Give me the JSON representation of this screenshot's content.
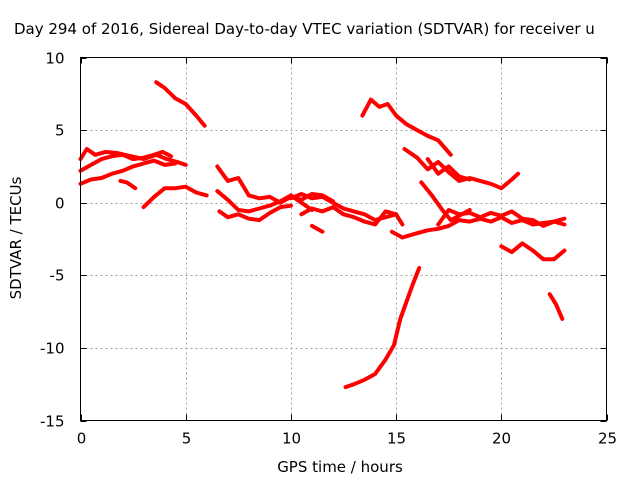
{
  "chart_data": {
    "type": "scatter",
    "title": "Day 294 of 2016, Sidereal Day-to-day VTEC variation (SDTVAR) for receiver u",
    "xlabel": "GPS time / hours",
    "ylabel": "SDTVAR / TECUs",
    "xlim": [
      0,
      25
    ],
    "ylim": [
      -15,
      10
    ],
    "xticks": [
      0,
      5,
      10,
      15,
      20,
      25
    ],
    "yticks": [
      -15,
      -10,
      -5,
      0,
      5,
      10
    ],
    "xtick_labels": [
      "0",
      "5",
      "10",
      "15",
      "20",
      "25"
    ],
    "ytick_labels": [
      "-15",
      "-10",
      "-5",
      "0",
      "5",
      "10"
    ],
    "grid": true,
    "marker_color": "#ff0000",
    "series": [
      {
        "x": [
          3.6,
          4.0,
          4.5,
          5.0,
          5.5,
          5.9
        ],
        "y": [
          8.3,
          7.9,
          7.2,
          6.8,
          6.0,
          5.3
        ]
      },
      {
        "x": [
          0.0,
          0.3,
          0.7,
          1.2,
          1.8,
          2.4,
          3.0,
          3.6,
          4.1,
          4.6,
          5.0
        ],
        "y": [
          3.0,
          3.7,
          3.3,
          3.5,
          3.4,
          3.2,
          3.0,
          3.3,
          3.0,
          2.8,
          2.6
        ]
      },
      {
        "x": [
          0.0,
          0.5,
          1.0,
          1.5,
          2.0,
          2.5,
          3.0,
          3.5,
          3.9,
          4.3
        ],
        "y": [
          2.2,
          2.6,
          3.0,
          3.2,
          3.3,
          3.0,
          3.1,
          3.3,
          3.5,
          3.2
        ]
      },
      {
        "x": [
          0.0,
          0.5,
          1.0,
          1.5,
          2.0,
          2.5,
          3.0,
          3.5,
          4.0,
          4.5
        ],
        "y": [
          1.3,
          1.6,
          1.7,
          2.0,
          2.2,
          2.5,
          2.7,
          2.9,
          2.6,
          2.7
        ]
      },
      {
        "x": [
          1.9,
          2.2,
          2.6
        ],
        "y": [
          1.5,
          1.4,
          1.0
        ]
      },
      {
        "x": [
          3.0,
          3.5,
          4.0,
          4.5,
          5.0,
          5.5,
          6.0
        ],
        "y": [
          -0.3,
          0.4,
          1.0,
          1.0,
          1.1,
          0.7,
          0.5
        ]
      },
      {
        "x": [
          6.5,
          7.0,
          7.5,
          8.0,
          8.5,
          9.0,
          9.5,
          10.0,
          10.5,
          11.0,
          11.5,
          12.0
        ],
        "y": [
          2.5,
          1.5,
          1.7,
          0.5,
          0.3,
          0.4,
          0.0,
          0.4,
          0.2,
          0.6,
          0.5,
          0.1
        ]
      },
      {
        "x": [
          6.5,
          7.0,
          7.5,
          8.0,
          8.5,
          9.0,
          9.5,
          10.0,
          10.5,
          11.0
        ],
        "y": [
          0.8,
          0.2,
          -0.5,
          -0.6,
          -0.4,
          -0.2,
          0.1,
          0.5,
          0.0,
          -0.5
        ]
      },
      {
        "x": [
          6.6,
          7.0,
          7.5,
          8.0,
          8.5,
          9.0,
          9.5,
          10.0
        ],
        "y": [
          -0.6,
          -1.0,
          -0.8,
          -1.1,
          -1.2,
          -0.7,
          -0.3,
          -0.2
        ]
      },
      {
        "x": [
          10.0,
          10.5,
          11.0,
          11.5,
          12.0,
          12.5,
          13.0,
          13.5,
          14.0,
          14.5,
          15.0,
          15.3
        ],
        "y": [
          0.3,
          0.6,
          0.3,
          0.4,
          0.0,
          -0.4,
          -0.6,
          -0.8,
          -1.2,
          -1.0,
          -0.8,
          -1.5
        ]
      },
      {
        "x": [
          10.5,
          11.0,
          11.5,
          12.0,
          12.5,
          13.0,
          13.5,
          14.0,
          14.5,
          15.0
        ],
        "y": [
          -0.8,
          -0.4,
          -0.6,
          -0.3,
          -0.8,
          -1.0,
          -1.3,
          -1.5,
          -0.6,
          -0.8
        ]
      },
      {
        "x": [
          11.0,
          11.5
        ],
        "y": [
          -1.6,
          -2.0
        ]
      },
      {
        "x": [
          14.8,
          15.3,
          16.0,
          16.5,
          17.0,
          17.5,
          18.0,
          18.5,
          19.0,
          19.5,
          20.0,
          20.5,
          21.0,
          21.5,
          22.0,
          22.5,
          23.0
        ],
        "y": [
          -2.0,
          -2.4,
          -2.1,
          -1.9,
          -1.8,
          -1.6,
          -1.2,
          -1.3,
          -1.1,
          -1.3,
          -1.0,
          -1.4,
          -1.2,
          -1.5,
          -1.4,
          -1.3,
          -1.1
        ]
      },
      {
        "x": [
          17.0,
          17.5,
          18.0,
          18.5,
          19.0,
          19.5,
          20.0,
          20.5,
          21.0,
          21.5,
          22.0,
          22.5,
          23.0
        ],
        "y": [
          -1.5,
          -0.5,
          -0.8,
          -0.7,
          -1.0,
          -0.7,
          -0.9,
          -0.6,
          -1.1,
          -1.2,
          -1.6,
          -1.3,
          -1.5
        ]
      },
      {
        "x": [
          16.2,
          16.7,
          17.2,
          17.6,
          18.0,
          18.5
        ],
        "y": [
          1.4,
          0.5,
          -0.5,
          -1.2,
          -0.9,
          -0.5
        ]
      },
      {
        "x": [
          20.0,
          20.5,
          21.0,
          21.5,
          22.0,
          22.5,
          23.0
        ],
        "y": [
          -3.0,
          -3.4,
          -2.8,
          -3.3,
          -3.9,
          -3.9,
          -3.3
        ]
      },
      {
        "x": [
          13.4,
          13.8,
          14.2,
          14.6,
          15.0,
          15.5,
          16.0,
          16.5,
          17.0,
          17.6
        ],
        "y": [
          6.0,
          7.1,
          6.6,
          6.8,
          6.0,
          5.4,
          5.0,
          4.6,
          4.3,
          3.3
        ]
      },
      {
        "x": [
          15.4,
          16.0,
          16.5,
          17.0,
          17.5,
          18.0,
          18.5,
          19.0,
          19.5,
          20.0,
          20.5,
          20.8
        ],
        "y": [
          3.7,
          3.1,
          2.3,
          2.8,
          2.1,
          1.5,
          1.7,
          1.5,
          1.3,
          1.0,
          1.6,
          2.0
        ]
      },
      {
        "x": [
          16.5,
          17.0,
          17.5,
          18.0,
          18.5
        ],
        "y": [
          3.0,
          2.0,
          2.5,
          1.8,
          1.6
        ]
      },
      {
        "x": [
          12.6,
          13.0,
          13.5,
          14.0,
          14.5,
          14.9,
          15.2,
          15.5,
          15.8,
          16.1
        ],
        "y": [
          -12.7,
          -12.5,
          -12.2,
          -11.8,
          -10.8,
          -9.8,
          -8.0,
          -6.8,
          -5.6,
          -4.5
        ]
      },
      {
        "x": [
          22.3,
          22.6,
          22.9
        ],
        "y": [
          -6.3,
          -7.0,
          -8.0
        ]
      }
    ]
  }
}
